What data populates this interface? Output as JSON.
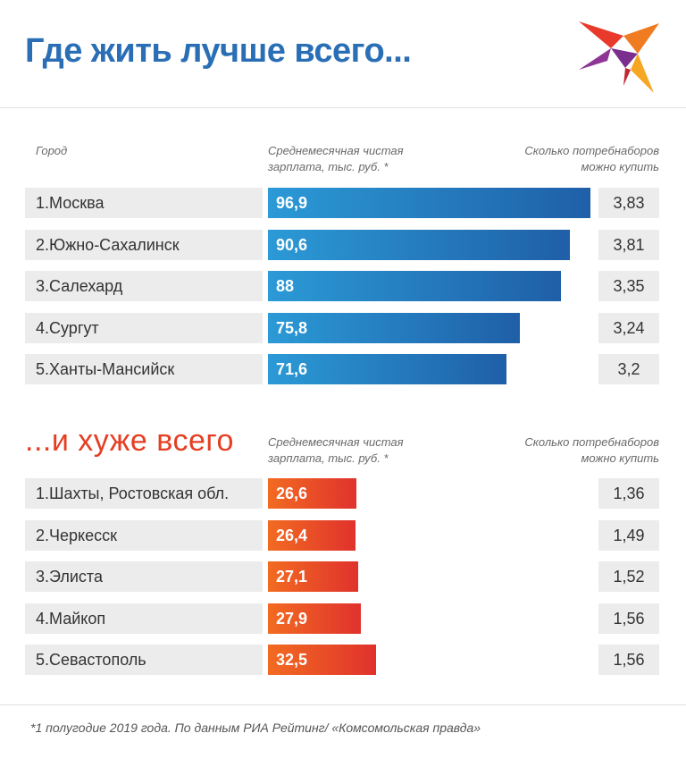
{
  "title": "Где жить лучше всего...",
  "headers": {
    "city": "Город",
    "salary_line1": "Среднемесячная чистая",
    "salary_line2": "зарплата,  тыс. руб. *",
    "baskets_line1": "Сколько потребнаборов",
    "baskets_line2": "можно купить"
  },
  "worst_title": "...и хуже всего",
  "footnote": "*1 полугодие 2019 года. По данным РИА Рейтинг/ «Комсомольская правда»",
  "colors": {
    "title": "#2a6fb5",
    "worst_title": "#e53e23",
    "best_bar": "#1f7fc8",
    "worst_bar": "#ec4b27"
  },
  "chart_data": [
    {
      "type": "bar",
      "title": "Где жить лучше всего...",
      "orientation": "horizontal",
      "categories": [
        "1.Москва",
        "2.Южно-Сахалинск",
        "3.Салехард",
        "4.Сургут",
        "5.Ханты-Мансийск"
      ],
      "series": [
        {
          "name": "Среднемесячная чистая зарплата, тыс. руб. *",
          "values": [
            "96,9",
            "90,6",
            "88",
            "75,8",
            "71,6"
          ]
        },
        {
          "name": "Сколько потребнаборов можно купить",
          "values": [
            "3,83",
            "3,81",
            "3,35",
            "3,24",
            "3,2"
          ]
        }
      ]
    },
    {
      "type": "bar",
      "title": "...и хуже всего",
      "orientation": "horizontal",
      "categories": [
        "1.Шахты, Ростовская обл.",
        "2.Черкесск",
        "3.Элиста",
        "4.Майкоп",
        "5.Севастополь"
      ],
      "series": [
        {
          "name": "Среднемесячная чистая зарплата, тыс. руб. *",
          "values": [
            "26,6",
            "26,4",
            "27,1",
            "27,9",
            "32,5"
          ]
        },
        {
          "name": "Сколько потребнаборов можно купить",
          "values": [
            "1,36",
            "1,49",
            "1,52",
            "1,56",
            "1,56"
          ]
        }
      ]
    }
  ]
}
